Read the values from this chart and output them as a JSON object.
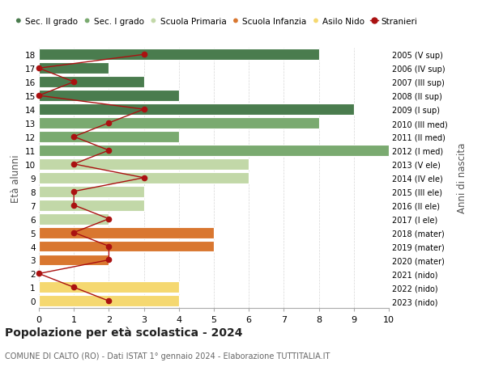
{
  "ages": [
    18,
    17,
    16,
    15,
    14,
    13,
    12,
    11,
    10,
    9,
    8,
    7,
    6,
    5,
    4,
    3,
    2,
    1,
    0
  ],
  "years": [
    "2005 (V sup)",
    "2006 (IV sup)",
    "2007 (III sup)",
    "2008 (II sup)",
    "2009 (I sup)",
    "2010 (III med)",
    "2011 (II med)",
    "2012 (I med)",
    "2013 (V ele)",
    "2014 (IV ele)",
    "2015 (III ele)",
    "2016 (II ele)",
    "2017 (I ele)",
    "2018 (mater)",
    "2019 (mater)",
    "2020 (mater)",
    "2021 (nido)",
    "2022 (nido)",
    "2023 (nido)"
  ],
  "bar_values": [
    8,
    2,
    3,
    4,
    9,
    8,
    4,
    10,
    6,
    6,
    3,
    3,
    2,
    5,
    5,
    2,
    0,
    4,
    4
  ],
  "bar_colors": [
    "#4a7c4e",
    "#4a7c4e",
    "#4a7c4e",
    "#4a7c4e",
    "#4a7c4e",
    "#7aaa70",
    "#7aaa70",
    "#7aaa70",
    "#c2d8a8",
    "#c2d8a8",
    "#c2d8a8",
    "#c2d8a8",
    "#c2d8a8",
    "#d97730",
    "#d97730",
    "#d97730",
    "#f5d870",
    "#f5d870",
    "#f5d870"
  ],
  "stranieri": [
    3,
    0,
    1,
    0,
    3,
    2,
    1,
    2,
    1,
    3,
    1,
    1,
    2,
    1,
    2,
    2,
    0,
    1,
    2
  ],
  "legend_labels": [
    "Sec. II grado",
    "Sec. I grado",
    "Scuola Primaria",
    "Scuola Infanzia",
    "Asilo Nido",
    "Stranieri"
  ],
  "legend_colors": [
    "#4a7c4e",
    "#7aaa70",
    "#c2d8a8",
    "#d97730",
    "#f5d870",
    "#cc1111"
  ],
  "stranieri_color": "#aa1111",
  "xlabel": "",
  "ylabel_left": "Età alunni",
  "ylabel_right": "Anni di nascita",
  "title": "Popolazione per età scolastica - 2024",
  "subtitle": "COMUNE DI CALTO (RO) - Dati ISTAT 1° gennaio 2024 - Elaborazione TUTTITALIA.IT",
  "xlim": [
    0,
    10
  ],
  "background_color": "#ffffff",
  "grid_color": "#cccccc"
}
